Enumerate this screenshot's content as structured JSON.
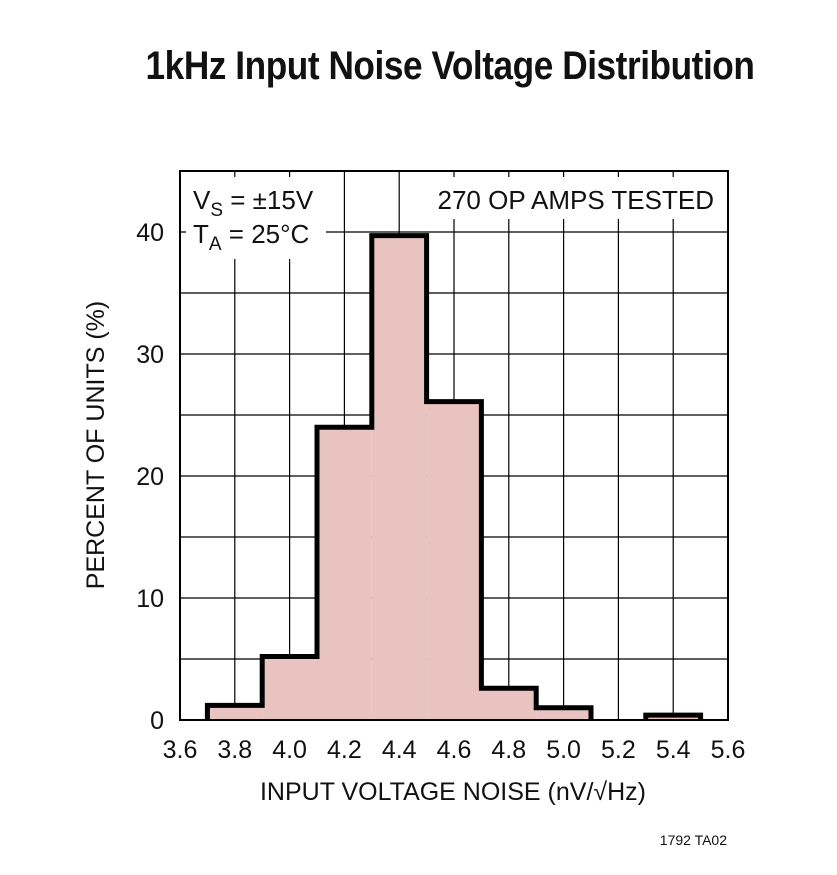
{
  "chart_data": {
    "type": "bar",
    "title": "1kHz Input Noise Voltage Distribution",
    "xlabel": "INPUT VOLTAGE NOISE (nV/√Hz)",
    "ylabel": "PERCENT OF UNITS (%)",
    "xlim": [
      3.6,
      5.6
    ],
    "ylim": [
      0,
      45
    ],
    "x_ticks": [
      "3.6",
      "3.8",
      "4.0",
      "4.2",
      "4.4",
      "4.6",
      "4.8",
      "5.0",
      "5.2",
      "5.4",
      "5.6"
    ],
    "x_tick_values": [
      3.6,
      3.8,
      4.0,
      4.2,
      4.4,
      4.6,
      4.8,
      5.0,
      5.2,
      5.4,
      5.6
    ],
    "y_ticks": [
      "0",
      "10",
      "20",
      "30",
      "40"
    ],
    "y_tick_values": [
      0,
      10,
      20,
      30,
      40
    ],
    "grid": true,
    "bin_width": 0.2,
    "bins": [
      {
        "center": 3.8,
        "value": 1.2
      },
      {
        "center": 4.0,
        "value": 5.2
      },
      {
        "center": 4.2,
        "value": 24.0
      },
      {
        "center": 4.4,
        "value": 39.7
      },
      {
        "center": 4.6,
        "value": 26.1
      },
      {
        "center": 4.8,
        "value": 2.6
      },
      {
        "center": 5.0,
        "value": 1.0
      },
      {
        "center": 5.2,
        "value": 0
      },
      {
        "center": 5.4,
        "value": 0.4
      }
    ],
    "annotations": {
      "vs_main": "V",
      "vs_sub": "S",
      "vs_rest": " = ±15V",
      "ta_main": "T",
      "ta_sub": "A",
      "ta_rest": " = 25°C",
      "tested": "270 OP AMPS TESTED"
    },
    "colors": {
      "fill": "#e8c3bf",
      "outline": "#000000",
      "grid": "#000000"
    }
  },
  "footnote": "1792 TA02"
}
